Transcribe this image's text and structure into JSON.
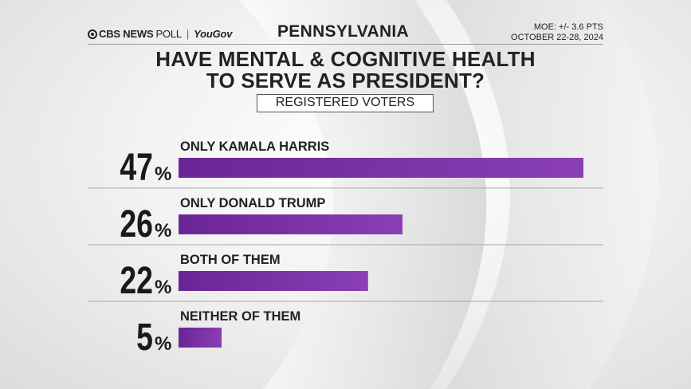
{
  "header": {
    "brand": "CBS NEWS",
    "poll_label": "POLL",
    "partner": "YouGov",
    "state": "PENNSYLVANIA",
    "moe": "MOE: +/- 3.6 PTS",
    "dates": "OCTOBER 22-28, 2024"
  },
  "chart_data": {
    "type": "bar",
    "orientation": "horizontal",
    "title": "HAVE MENTAL & COGNITIVE HEALTH TO SERVE AS PRESIDENT?",
    "title_lines": [
      "HAVE MENTAL & COGNITIVE HEALTH",
      "TO SERVE AS PRESIDENT?"
    ],
    "subtitle": "REGISTERED VOTERS",
    "categories": [
      "ONLY KAMALA HARRIS",
      "ONLY DONALD TRUMP",
      "BOTH OF THEM",
      "NEITHER OF THEM"
    ],
    "values": [
      47,
      26,
      22,
      5
    ],
    "value_labels": [
      "47",
      "26",
      "22",
      "5"
    ],
    "unit": "%",
    "xlim": [
      0,
      47
    ],
    "bar_color": "#8a3fb5",
    "bar_color_dark": "#6a2595"
  }
}
